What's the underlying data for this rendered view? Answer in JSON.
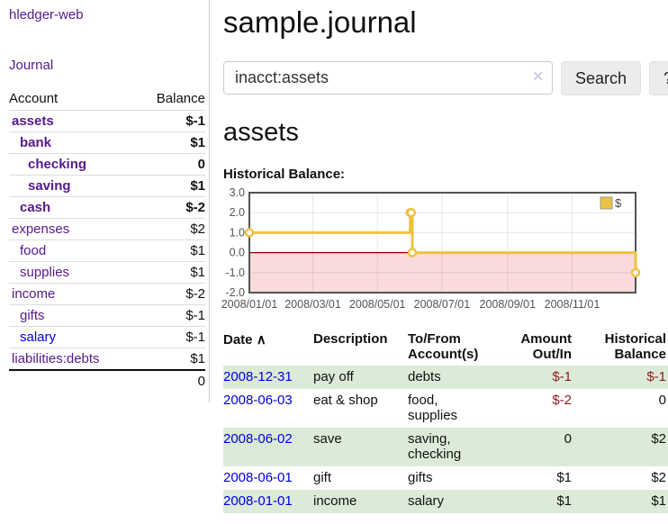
{
  "sidebar": {
    "app_title": "hledger-web",
    "nav": [
      {
        "label": "Journal"
      }
    ],
    "accounts_table": {
      "headers": [
        "Account",
        "Balance"
      ],
      "rows": [
        {
          "name": "assets",
          "depth": 0,
          "bold": true,
          "link_color": "purple",
          "balance": "$-1",
          "balance_style": "neg-strong"
        },
        {
          "name": "bank",
          "depth": 1,
          "bold": true,
          "link_color": "purple",
          "balance": "$1",
          "balance_style": "pos"
        },
        {
          "name": "checking",
          "depth": 2,
          "bold": true,
          "link_color": "purple",
          "balance": "0",
          "balance_style": "pos"
        },
        {
          "name": "saving",
          "depth": 2,
          "bold": true,
          "link_color": "purple",
          "balance": "$1",
          "balance_style": "pos"
        },
        {
          "name": "cash",
          "depth": 1,
          "bold": true,
          "link_color": "purple",
          "balance": "$-2",
          "balance_style": "neg-strong"
        },
        {
          "name": "expenses",
          "depth": 0,
          "bold": false,
          "link_color": "purple",
          "balance": "$2",
          "balance_style": "pos"
        },
        {
          "name": "food",
          "depth": 1,
          "bold": false,
          "link_color": "purple",
          "balance": "$1",
          "balance_style": "pos"
        },
        {
          "name": "supplies",
          "depth": 1,
          "bold": false,
          "link_color": "purple",
          "balance": "$1",
          "balance_style": "pos"
        },
        {
          "name": "income",
          "depth": 0,
          "bold": false,
          "link_color": "purple",
          "balance": "$-2",
          "balance_style": "neg-soft"
        },
        {
          "name": "gifts",
          "depth": 1,
          "bold": false,
          "link_color": "purple",
          "balance": "$-1",
          "balance_style": "neg-soft"
        },
        {
          "name": "salary",
          "depth": 1,
          "bold": false,
          "link_color": "blue",
          "balance": "$-1",
          "balance_style": "neg-soft"
        },
        {
          "name": "liabilities:debts",
          "depth": 0,
          "bold": false,
          "link_color": "purple",
          "balance": "$1",
          "balance_style": "pos"
        }
      ],
      "total": "0"
    }
  },
  "main": {
    "page_title": "sample.journal",
    "search": {
      "value": "inacct:assets",
      "clear_icon": "✕",
      "button_label": "Search",
      "help_label": "?"
    },
    "account_heading": "assets",
    "chart_label": "Historical Balance:",
    "register_table": {
      "headers": {
        "date": "Date",
        "sort_indicator": "∧",
        "description": "Description",
        "accounts": "To/From Account(s)",
        "amount": "Amount Out/In",
        "balance": "Historical Balance"
      },
      "rows": [
        {
          "date": "2008-12-31",
          "description": "pay off",
          "accounts": "debts",
          "amount": "$-1",
          "amount_neg": true,
          "balance": "$-1",
          "balance_neg": true
        },
        {
          "date": "2008-06-03",
          "description": "eat & shop",
          "accounts": "food, supplies",
          "amount": "$-2",
          "amount_neg": true,
          "balance": "0",
          "balance_neg": false
        },
        {
          "date": "2008-06-02",
          "description": "save",
          "accounts": "saving, checking",
          "amount": "0",
          "amount_neg": false,
          "balance": "$2",
          "balance_neg": false
        },
        {
          "date": "2008-06-01",
          "description": "gift",
          "accounts": "gifts",
          "amount": "$1",
          "amount_neg": false,
          "balance": "$2",
          "balance_neg": false
        },
        {
          "date": "2008-01-01",
          "description": "income",
          "accounts": "salary",
          "amount": "$1",
          "amount_neg": false,
          "balance": "$1",
          "balance_neg": false
        }
      ]
    }
  },
  "colors": {
    "link_visited_purple": "#551a8b",
    "link_blue": "#0000dd",
    "negative_strong": "#8b1a1a",
    "negative_soft": "#c47878",
    "row_green": "#dcebd8",
    "series_gold": "#edc240",
    "negative_region_pink": "#fadada",
    "zero_line_darkred": "#8b0000",
    "divider_gray": "#cccccc"
  },
  "chart_data": {
    "type": "line",
    "title": "Historical Balance:",
    "steps": true,
    "series": [
      {
        "name": "$",
        "color": "#edc240",
        "points": [
          {
            "date": "2008-01-01",
            "day": 0,
            "value": 1
          },
          {
            "date": "2008-06-01",
            "day": 152,
            "value": 2
          },
          {
            "date": "2008-06-02",
            "day": 153,
            "value": 2
          },
          {
            "date": "2008-06-03",
            "day": 154,
            "value": 0
          },
          {
            "date": "2008-12-31",
            "day": 365,
            "value": -1
          }
        ]
      }
    ],
    "x_ticks": [
      "2008/01/01",
      "2008/03/01",
      "2008/05/01",
      "2008/07/01",
      "2008/09/01",
      "2008/11/01"
    ],
    "x_tick_days": [
      0,
      60,
      121,
      182,
      244,
      305
    ],
    "x_range_days": [
      0,
      365
    ],
    "y_ticks": [
      3.0,
      2.0,
      1.0,
      0.0,
      -1.0,
      -2.0
    ],
    "ylim": [
      -2,
      3
    ],
    "grid": true,
    "legend_position": "top-right",
    "negative_region_color": "#fadada",
    "zero_line_color": "#8b0000"
  }
}
